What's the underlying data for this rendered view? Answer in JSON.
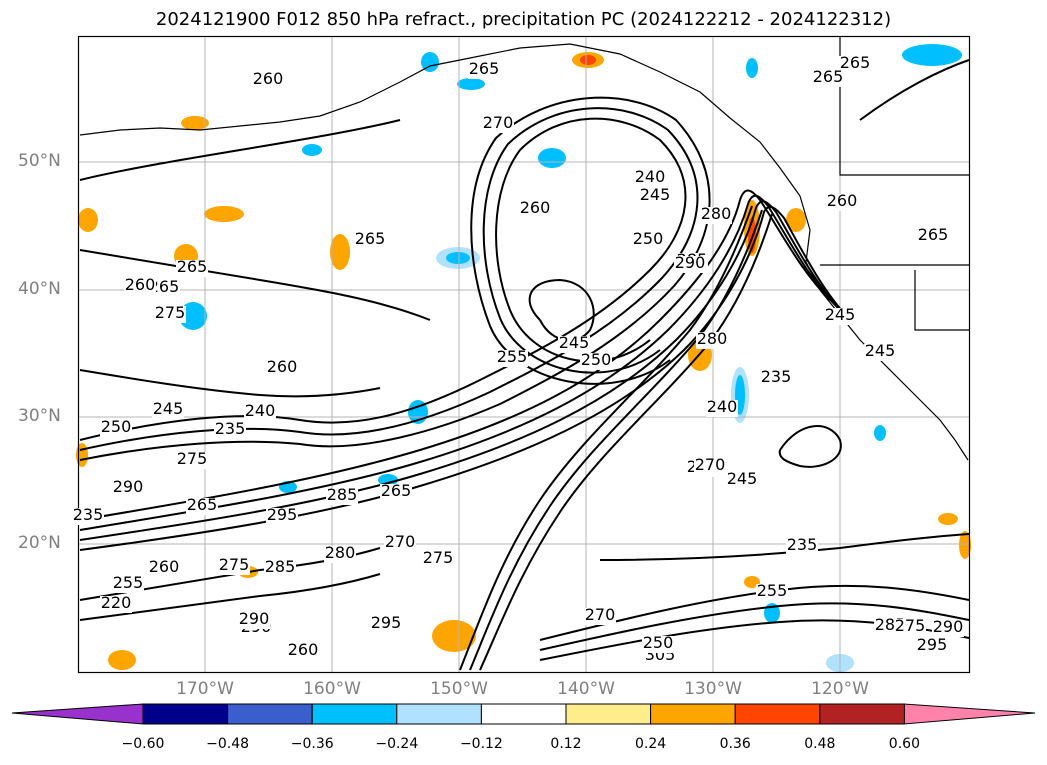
{
  "title": "2024121900 F012 850 hPa refract., precipitation PC (2024122212 - 2024122312)",
  "lat_labels": [
    "50°N",
    "40°N",
    "30°N",
    "20°N"
  ],
  "lon_labels": [
    "170°W",
    "160°W",
    "150°W",
    "140°W",
    "130°W",
    "120°W"
  ],
  "colorbar": {
    "ticks": [
      "−0.60",
      "−0.48",
      "−0.36",
      "−0.24",
      "−0.12",
      "0.12",
      "0.24",
      "0.36",
      "0.48",
      "0.60"
    ],
    "colors": [
      "#9932cc",
      "#00008b",
      "#3a5fcd",
      "#00bfff",
      "#b0e2ff",
      "#ffffff",
      "#ffec8b",
      "#ffa500",
      "#ff4500",
      "#b22222",
      "#ff82ab"
    ]
  },
  "contour_labels": [
    "260",
    "265",
    "270",
    "265",
    "265",
    "265",
    "260",
    "240",
    "245",
    "250",
    "280",
    "285",
    "260",
    "265",
    "260",
    "265",
    "275",
    "265",
    "255",
    "260",
    "245",
    "250",
    "235",
    "240",
    "250",
    "245",
    "275",
    "290",
    "285",
    "265",
    "295",
    "280",
    "275",
    "290",
    "260",
    "255",
    "260",
    "285",
    "270",
    "275",
    "290",
    "295",
    "270",
    "280",
    "290",
    "305",
    "255",
    "235",
    "240",
    "245",
    "240",
    "235",
    "245",
    "265",
    "285",
    "275",
    "290",
    "295",
    "250",
    "270",
    "245",
    "235",
    "220"
  ]
}
